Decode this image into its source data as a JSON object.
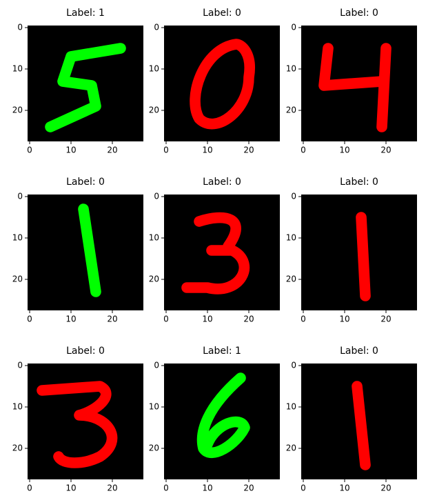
{
  "chart_data": [
    {
      "type": "image",
      "title": "Label: 1",
      "color": "#00ff00",
      "xlim": [
        -0.5,
        27.5
      ],
      "ylim": [
        27.5,
        -0.5
      ],
      "xticks": [
        0,
        10,
        20
      ],
      "yticks": [
        0,
        10,
        20
      ]
    },
    {
      "type": "image",
      "title": "Label: 0",
      "color": "#ff0000",
      "xlim": [
        -0.5,
        27.5
      ],
      "ylim": [
        27.5,
        -0.5
      ],
      "xticks": [
        0,
        10,
        20
      ],
      "yticks": [
        0,
        10,
        20
      ]
    },
    {
      "type": "image",
      "title": "Label: 0",
      "color": "#ff0000",
      "xlim": [
        -0.5,
        27.5
      ],
      "ylim": [
        27.5,
        -0.5
      ],
      "xticks": [
        0,
        10,
        20
      ],
      "yticks": [
        0,
        10,
        20
      ]
    },
    {
      "type": "image",
      "title": "Label: 0",
      "color": "#00ff00",
      "xlim": [
        -0.5,
        27.5
      ],
      "ylim": [
        27.5,
        -0.5
      ],
      "xticks": [
        0,
        10,
        20
      ],
      "yticks": [
        0,
        10,
        20
      ]
    },
    {
      "type": "image",
      "title": "Label: 0",
      "color": "#ff0000",
      "xlim": [
        -0.5,
        27.5
      ],
      "ylim": [
        27.5,
        -0.5
      ],
      "xticks": [
        0,
        10,
        20
      ],
      "yticks": [
        0,
        10,
        20
      ]
    },
    {
      "type": "image",
      "title": "Label: 0",
      "color": "#ff0000",
      "xlim": [
        -0.5,
        27.5
      ],
      "ylim": [
        27.5,
        -0.5
      ],
      "xticks": [
        0,
        10,
        20
      ],
      "yticks": [
        0,
        10,
        20
      ]
    },
    {
      "type": "image",
      "title": "Label: 0",
      "color": "#ff0000",
      "xlim": [
        -0.5,
        27.5
      ],
      "ylim": [
        27.5,
        -0.5
      ],
      "xticks": [
        0,
        10,
        20
      ],
      "yticks": [
        0,
        10,
        20
      ]
    },
    {
      "type": "image",
      "title": "Label: 1",
      "color": "#00ff00",
      "xlim": [
        -0.5,
        27.5
      ],
      "ylim": [
        27.5,
        -0.5
      ],
      "xticks": [
        0,
        10,
        20
      ],
      "yticks": [
        0,
        10,
        20
      ]
    },
    {
      "type": "image",
      "title": "Label: 0",
      "color": "#ff0000",
      "xlim": [
        -0.5,
        27.5
      ],
      "ylim": [
        27.5,
        -0.5
      ],
      "xticks": [
        0,
        10,
        20
      ],
      "yticks": [
        0,
        10,
        20
      ]
    }
  ]
}
